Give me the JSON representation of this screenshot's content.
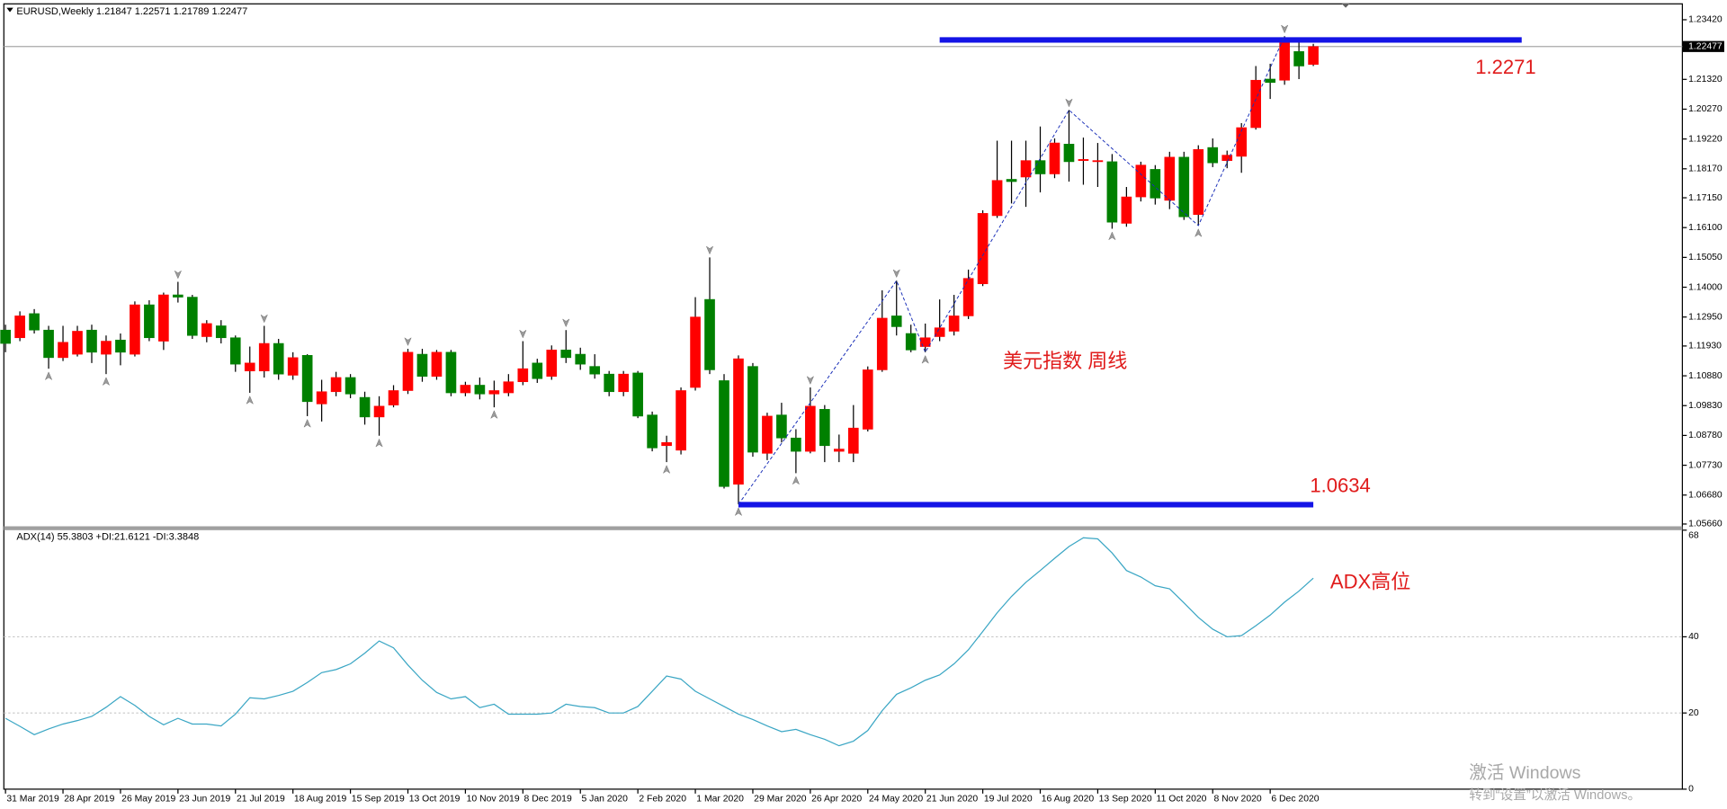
{
  "chart_data": [
    {
      "type": "candlestick",
      "header": "EURUSD,Weekly  1.21847 1.22571 1.21789 1.22477",
      "categories": [
        "31 Mar 2019",
        null,
        null,
        null,
        "28 Apr 2019",
        null,
        null,
        null,
        "26 May 2019",
        null,
        null,
        null,
        "23 Jun 2019",
        null,
        null,
        null,
        "21 Jul 2019",
        null,
        null,
        null,
        "18 Aug 2019",
        null,
        null,
        null,
        "15 Sep 2019",
        null,
        null,
        null,
        "13 Oct 2019",
        null,
        null,
        null,
        "10 Nov 2019",
        null,
        null,
        null,
        "8 Dec 2019",
        null,
        null,
        null,
        "5 Jan 2020",
        null,
        null,
        null,
        "2 Feb 2020",
        null,
        null,
        null,
        "1 Mar 2020",
        null,
        null,
        null,
        "29 Mar 2020",
        null,
        null,
        null,
        "26 Apr 2020",
        null,
        null,
        null,
        "24 May 2020",
        null,
        null,
        null,
        "21 Jun 2020",
        null,
        null,
        null,
        "19 Jul 2020",
        null,
        null,
        null,
        "16 Aug 2020",
        null,
        null,
        null,
        "13 Sep 2020",
        null,
        null,
        null,
        "11 Oct 2020",
        null,
        null,
        null,
        "8 Nov 2020",
        null,
        null,
        null,
        "6 Dec 2020",
        null,
        null,
        null
      ],
      "open": [
        1.1249,
        1.1222,
        1.1307,
        1.1249,
        1.1152,
        1.1164,
        1.1249,
        1.1164,
        1.1214,
        1.1164,
        1.1338,
        1.121,
        1.1373,
        1.1365,
        1.1226,
        1.1264,
        1.1222,
        1.1105,
        1.1105,
        1.1202,
        1.109,
        1.116,
        1.0989,
        1.1032,
        1.1082,
        1.1012,
        1.0943,
        1.0985,
        1.1036,
        1.1164,
        1.1086,
        1.1171,
        1.1028,
        1.1055,
        1.1024,
        1.1028,
        1.1067,
        1.1133,
        1.1086,
        1.1179,
        1.1164,
        1.1121,
        1.1094,
        1.1032,
        1.1098,
        1.095,
        1.0842,
        1.0826,
        1.1047,
        1.1357,
        1.1071,
        1.0706,
        1.1121,
        1.0815,
        1.095,
        1.0869,
        1.0822,
        1.097,
        1.0822,
        1.0815,
        1.09,
        1.1109,
        1.1299,
        1.1237,
        1.1191,
        1.1226,
        1.1245,
        1.1299,
        1.1412,
        1.1652,
        1.178,
        1.1788,
        1.1846,
        1.1799,
        1.1904,
        1.1846,
        1.1842,
        1.1842,
        1.1625,
        1.1718,
        1.1815,
        1.1706,
        1.1858,
        1.1656,
        1.1892,
        1.1846,
        1.1861,
        1.1962,
        1.2133,
        1.2129,
        1.223,
        1.21847
      ],
      "high": [
        1.1268,
        1.1315,
        1.1323,
        1.1264,
        1.1264,
        1.1264,
        1.1268,
        1.123,
        1.1237,
        1.135,
        1.1354,
        1.1381,
        1.1419,
        1.1373,
        1.1284,
        1.1284,
        1.123,
        1.1191,
        1.1264,
        1.1218,
        1.1171,
        1.1164,
        1.1074,
        1.1102,
        1.1094,
        1.1032,
        1.1016,
        1.1055,
        1.1183,
        1.1183,
        1.1179,
        1.1179,
        1.1067,
        1.1082,
        1.1071,
        1.1094,
        1.121,
        1.1148,
        1.1195,
        1.1249,
        1.1187,
        1.1164,
        1.1105,
        1.1105,
        1.1105,
        1.0962,
        1.0877,
        1.1047,
        1.1365,
        1.1505,
        1.1094,
        1.116,
        1.1133,
        1.0958,
        1.0993,
        1.09,
        1.1047,
        1.0985,
        1.0881,
        1.0985,
        1.1121,
        1.1389,
        1.1423,
        1.1268,
        1.1272,
        1.1357,
        1.1373,
        1.1462,
        1.1671,
        1.1916,
        1.1916,
        1.1916,
        1.1966,
        1.1924,
        1.2024,
        1.1927,
        1.1908,
        1.1869,
        1.1753,
        1.1842,
        1.183,
        1.1877,
        1.1877,
        1.19,
        1.1924,
        1.1881,
        1.1978,
        1.2179,
        1.2187,
        1.2284,
        1.2265,
        1.22571
      ],
      "low": [
        1.1171,
        1.121,
        1.1237,
        1.1113,
        1.114,
        1.1156,
        1.1133,
        1.1094,
        1.1125,
        1.1156,
        1.121,
        1.1179,
        1.1346,
        1.1218,
        1.1206,
        1.1202,
        1.1102,
        1.1028,
        1.1082,
        1.1074,
        1.1074,
        1.0946,
        1.0927,
        1.1016,
        1.1009,
        1.0916,
        1.0877,
        1.0977,
        1.1024,
        1.1067,
        1.1074,
        1.1016,
        1.1016,
        1.1005,
        1.0977,
        1.1016,
        1.1055,
        1.1063,
        1.1074,
        1.1133,
        1.1109,
        1.1078,
        1.1016,
        1.1016,
        1.0939,
        1.0822,
        1.0784,
        1.0811,
        1.1036,
        1.1094,
        1.0691,
        1.0635,
        1.0803,
        1.0791,
        1.0853,
        1.0745,
        1.0815,
        1.0784,
        1.0784,
        1.0784,
        1.0892,
        1.1102,
        1.123,
        1.1171,
        1.1171,
        1.121,
        1.123,
        1.1288,
        1.1404,
        1.1644,
        1.1695,
        1.1683,
        1.1734,
        1.1784,
        1.1772,
        1.1761,
        1.1753,
        1.1606,
        1.1613,
        1.1702,
        1.1691,
        1.1675,
        1.1637,
        1.1617,
        1.1823,
        1.1819,
        1.1803,
        1.1955,
        1.2063,
        1.2113,
        1.2133,
        1.21789
      ],
      "close": [
        1.1202,
        1.1299,
        1.1249,
        1.1152,
        1.1206,
        1.1245,
        1.1171,
        1.121,
        1.1171,
        1.1338,
        1.1222,
        1.1373,
        1.1365,
        1.123,
        1.1272,
        1.1222,
        1.1129,
        1.1133,
        1.1202,
        1.1094,
        1.1152,
        1.0997,
        1.1032,
        1.1082,
        1.1024,
        1.0943,
        1.0981,
        1.1036,
        1.1171,
        1.1086,
        1.1171,
        1.1028,
        1.1055,
        1.1024,
        1.1036,
        1.1067,
        1.1113,
        1.1078,
        1.1179,
        1.1152,
        1.1129,
        1.1094,
        1.1032,
        1.1094,
        1.0946,
        1.0834,
        1.0853,
        1.1036,
        1.1295,
        1.1109,
        1.0698,
        1.1148,
        1.0819,
        1.0946,
        1.0869,
        1.0822,
        1.0981,
        1.0842,
        1.083,
        1.0904,
        1.1109,
        1.1291,
        1.1261,
        1.1179,
        1.1222,
        1.1257,
        1.1299,
        1.1431,
        1.166,
        1.1776,
        1.1772,
        1.1846,
        1.1799,
        1.1908,
        1.1842,
        1.185,
        1.1846,
        1.1629,
        1.1718,
        1.183,
        1.1714,
        1.1858,
        1.1648,
        1.1885,
        1.1838,
        1.1865,
        1.1962,
        1.2129,
        1.2121,
        1.2265,
        1.2179,
        1.22477
      ],
      "up_color": "#ff0000",
      "down_color": "#008000",
      "wick_color": "#000000",
      "ylim": [
        1.0558,
        1.2396
      ],
      "yticks": [
        {
          "value": 1.2342,
          "label": "1.23420"
        },
        {
          "value": 1.2132,
          "label": "1.21320"
        },
        {
          "value": 1.2027,
          "label": "1.20270"
        },
        {
          "value": 1.1922,
          "label": "1.19220"
        },
        {
          "value": 1.1817,
          "label": "1.18170"
        },
        {
          "value": 1.1715,
          "label": "1.17150"
        },
        {
          "value": 1.161,
          "label": "1.16100"
        },
        {
          "value": 1.1505,
          "label": "1.15050"
        },
        {
          "value": 1.14,
          "label": "1.14000"
        },
        {
          "value": 1.1295,
          "label": "1.12950"
        },
        {
          "value": 1.1193,
          "label": "1.11930"
        },
        {
          "value": 1.1088,
          "label": "1.10880"
        },
        {
          "value": 1.0983,
          "label": "1.09830"
        },
        {
          "value": 1.0878,
          "label": "1.08780"
        },
        {
          "value": 1.0773,
          "label": "1.07730"
        },
        {
          "value": 1.0668,
          "label": "1.06680"
        },
        {
          "value": 1.0566,
          "label": "1.05660"
        }
      ],
      "current_price": 1.22477,
      "zigzag": {
        "color": "#1a2fb8",
        "x": [
          51,
          62,
          64,
          74,
          83,
          89
        ],
        "values": [
          1.0635,
          1.1423,
          1.1171,
          1.2024,
          1.1617,
          1.2284
        ]
      },
      "fractals_up": {
        "x": [
          12,
          18,
          28,
          36,
          39,
          49,
          56,
          62,
          74,
          89
        ],
        "values": [
          1.1419,
          1.1264,
          1.1183,
          1.121,
          1.1249,
          1.1505,
          1.1047,
          1.1423,
          1.2024,
          1.2284
        ]
      },
      "fractals_down": {
        "x": [
          3,
          7,
          17,
          21,
          26,
          34,
          46,
          51,
          55,
          64,
          77,
          83
        ],
        "values": [
          1.1113,
          1.1094,
          1.1028,
          1.0946,
          1.0877,
          1.0977,
          1.0784,
          1.0635,
          1.0745,
          1.1171,
          1.1606,
          1.1617
        ]
      },
      "levels": [
        {
          "value": 1.2271,
          "x": [
            65,
            105.5
          ],
          "color": "#1414e6"
        },
        {
          "value": 1.0634,
          "x": [
            51,
            91
          ],
          "color": "#1414e6"
        }
      ],
      "annotation": "美元指数 周线"
    },
    {
      "type": "line",
      "header": "ADX(14) 55.3803 +DI:21.6121 -DI:3.3848",
      "color": "#3aa6c4",
      "values": [
        18.6,
        16.5,
        14.3,
        15.8,
        17.1,
        18.0,
        19.1,
        21.5,
        24.3,
        22.0,
        19.1,
        16.9,
        18.6,
        17.1,
        17.1,
        16.6,
        19.7,
        24.0,
        23.7,
        24.6,
        25.7,
        28.0,
        30.6,
        31.4,
        32.9,
        35.7,
        38.9,
        37.1,
        32.6,
        28.6,
        25.4,
        23.7,
        24.3,
        21.4,
        22.3,
        19.7,
        19.7,
        19.7,
        20.0,
        22.3,
        21.7,
        21.4,
        20.0,
        20.0,
        21.7,
        25.7,
        29.7,
        28.9,
        25.7,
        23.7,
        21.7,
        19.7,
        18.3,
        16.6,
        15.1,
        15.7,
        14.3,
        13.1,
        11.4,
        12.6,
        15.4,
        20.6,
        24.9,
        26.6,
        28.6,
        30.0,
        32.9,
        36.6,
        41.4,
        46.3,
        50.6,
        54.3,
        57.4,
        60.6,
        63.7,
        66.0,
        65.7,
        62.0,
        57.4,
        55.7,
        53.4,
        52.6,
        48.9,
        45.1,
        42.0,
        40.0,
        40.3,
        42.9,
        45.7,
        49.1,
        52.0,
        55.4
      ],
      "ylim": [
        0,
        68
      ],
      "yticks": [
        0,
        20,
        40,
        68
      ],
      "grid": true,
      "annotation": "ADX高位"
    }
  ],
  "watermark": [
    "激活 Windows",
    "转到“设置”以激活 Windows。"
  ]
}
